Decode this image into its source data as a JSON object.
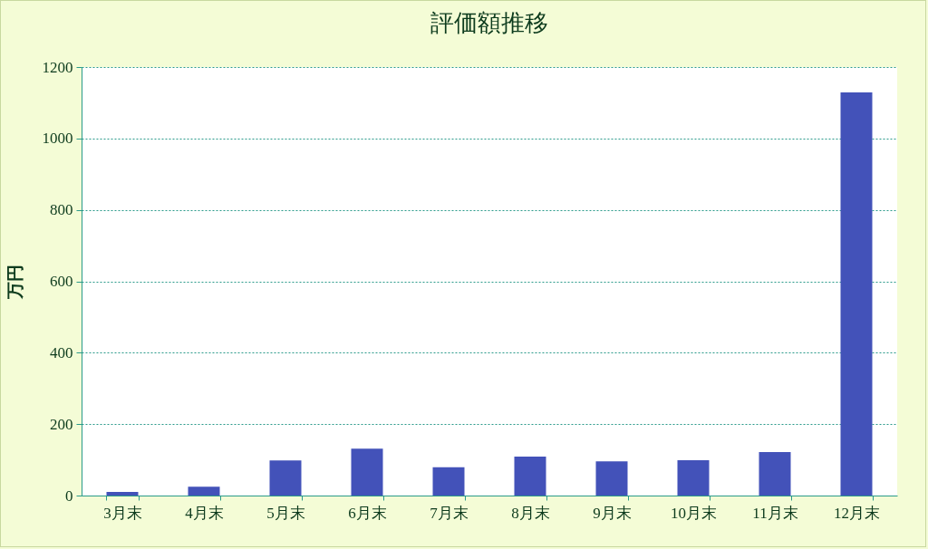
{
  "chart_data": {
    "type": "bar",
    "title": "評価額推移",
    "ylabel": "万円",
    "categories": [
      "3月末",
      "4月末",
      "5月末",
      "6月末",
      "7月末",
      "8月末",
      "9月末",
      "10月末",
      "11月末",
      "12月末"
    ],
    "values": [
      10,
      25,
      98,
      131,
      79,
      109,
      96,
      99,
      122,
      1129
    ],
    "color": "#4352b9",
    "ylim": [
      0,
      1200
    ],
    "yticks": [
      0,
      200,
      400,
      600,
      800,
      1000,
      1200
    ],
    "grid": "y"
  }
}
